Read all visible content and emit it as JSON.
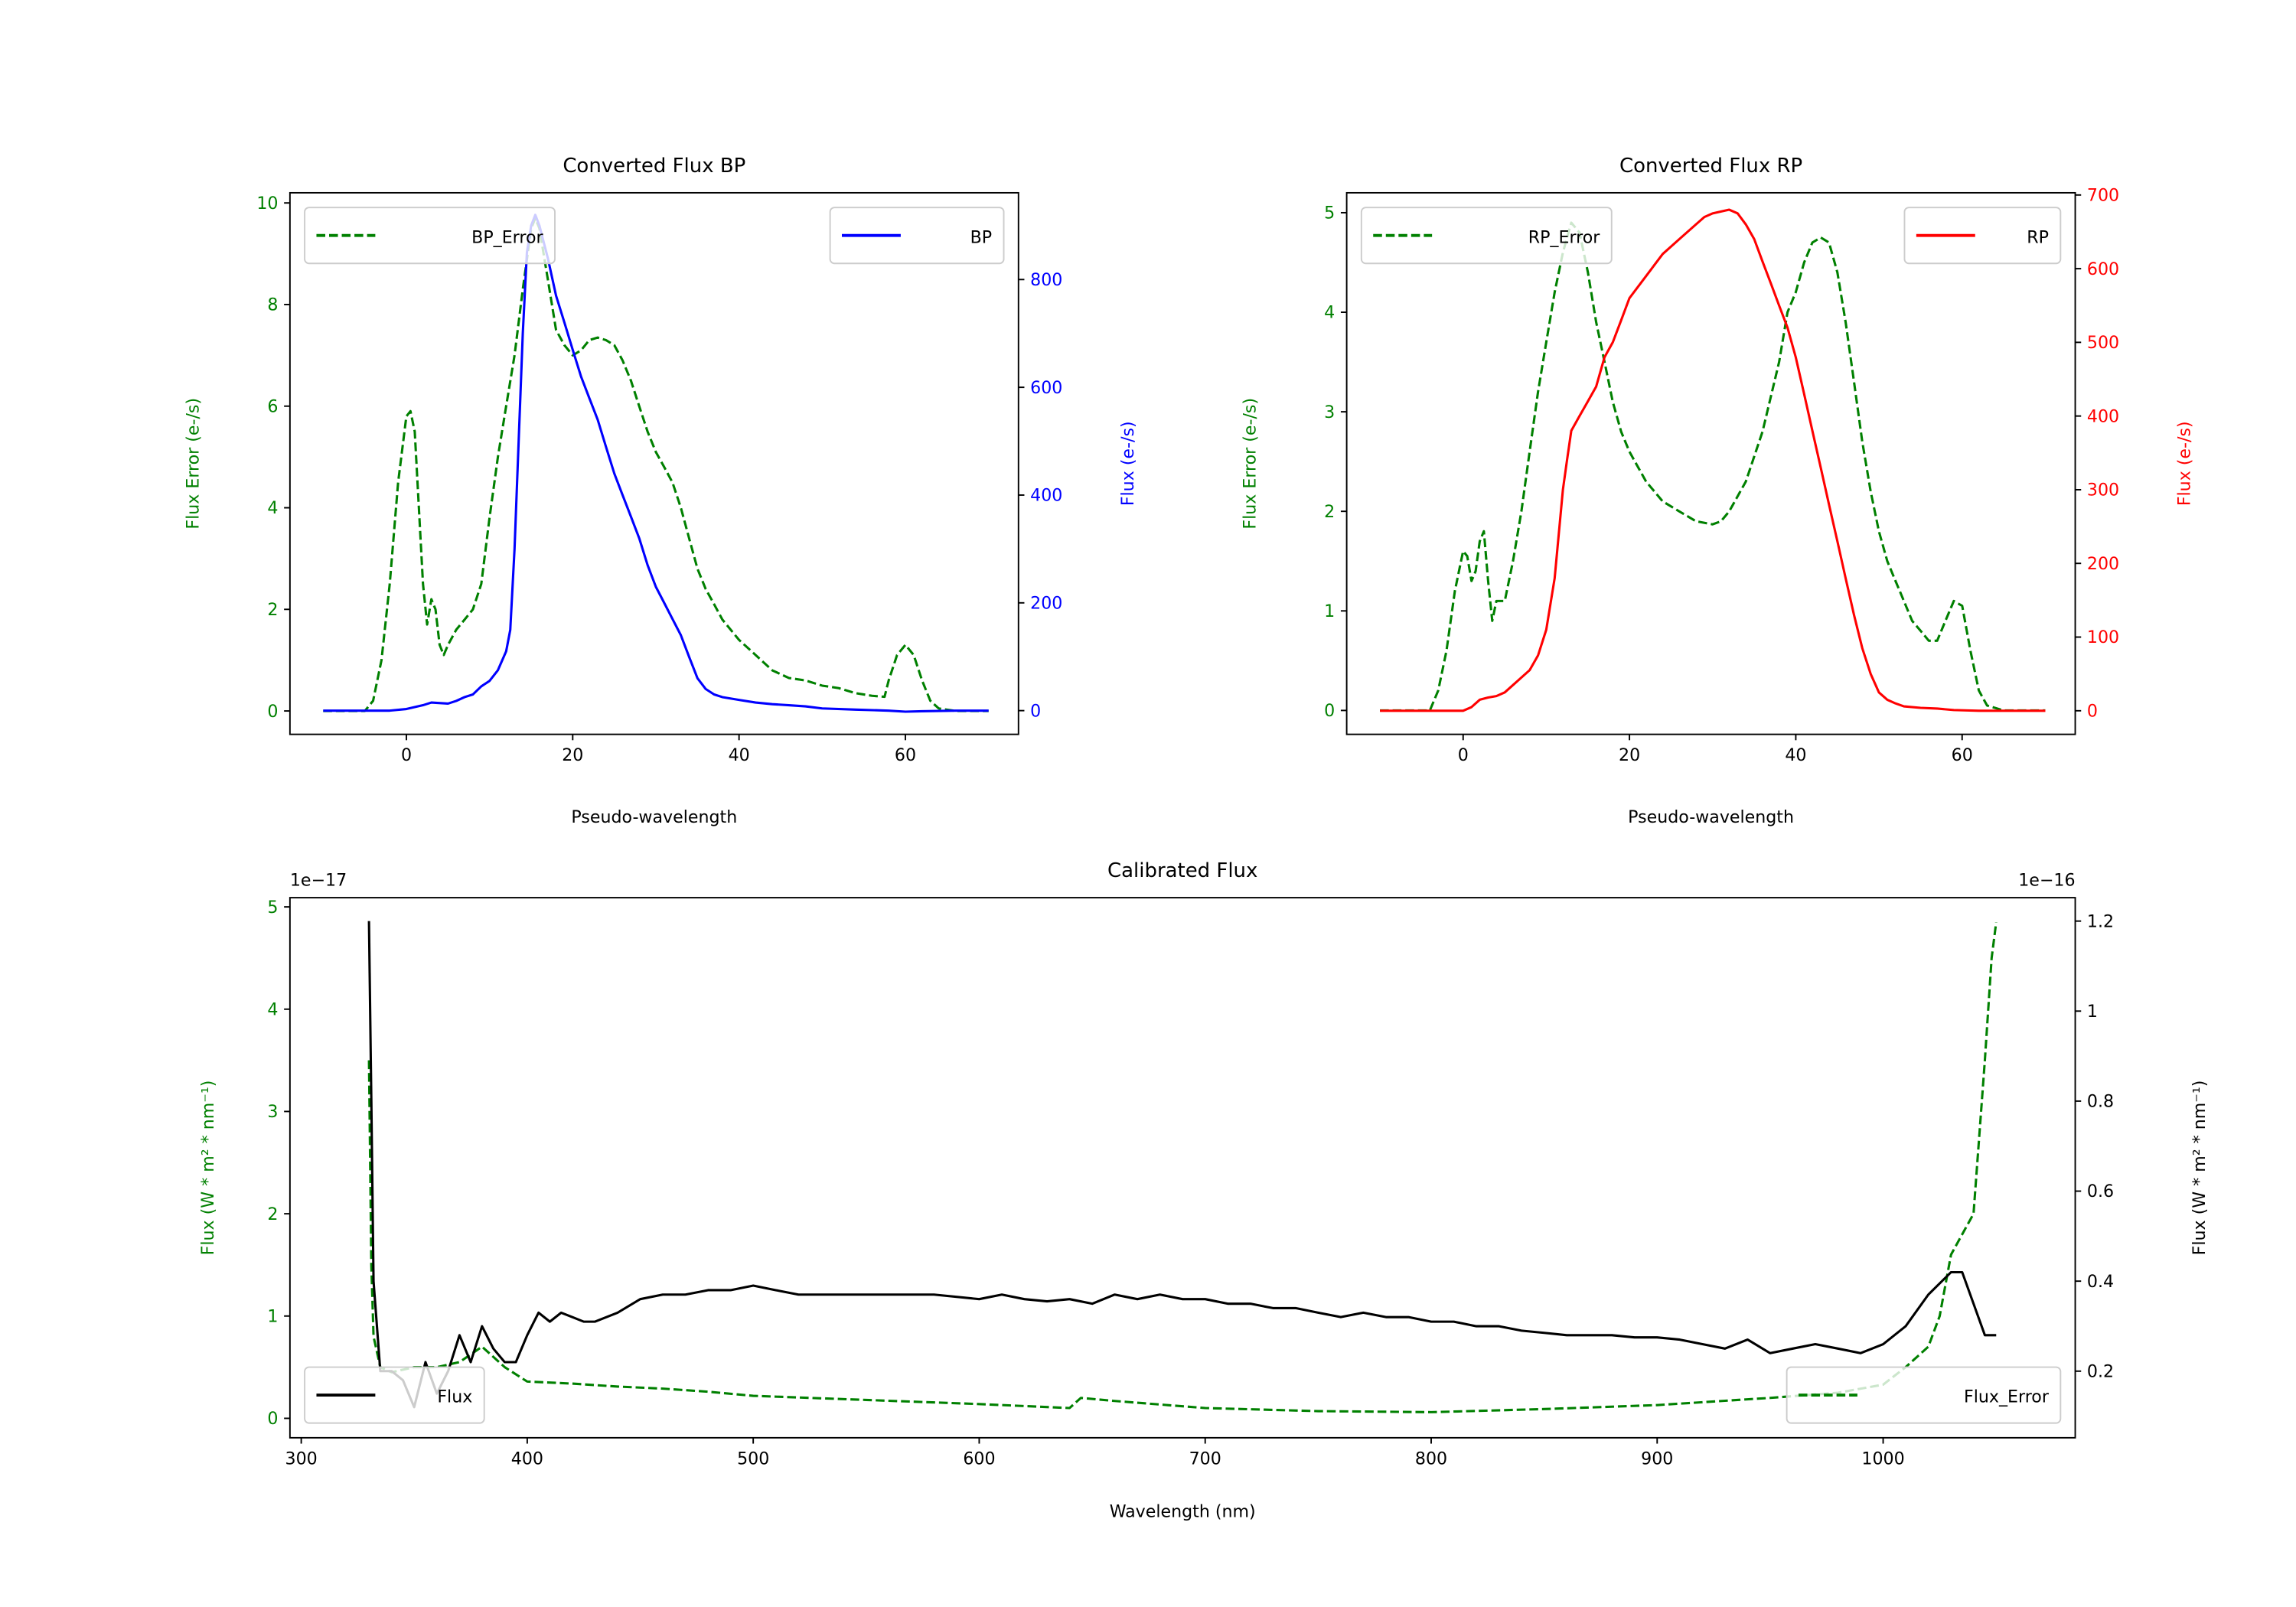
{
  "colors": {
    "error": "#008000",
    "bp": "#0000ff",
    "rp": "#ff0000",
    "flux": "#000000",
    "legend_border": "#cccccc"
  },
  "chart_data": [
    {
      "type": "line",
      "title": "Converted Flux BP",
      "xlabel": "Pseudo-wavelength",
      "ylabel_left": "Flux Error (e-/s)",
      "ylabel_right": "Flux (e-/s)",
      "xlim": [
        -14,
        73.6
      ],
      "ylim_left": [
        -0.46,
        10.2
      ],
      "ylim_right": [
        -44,
        961
      ],
      "xticks": [
        0,
        20,
        40,
        60
      ],
      "yticks_left": [
        0,
        2,
        4,
        6,
        8,
        10
      ],
      "yticks_right": [
        0,
        200,
        400,
        600,
        800
      ],
      "legend_left": {
        "label": "BP_Error",
        "placement": "upper-left"
      },
      "legend_right": {
        "label": "BP",
        "placement": "upper-right"
      },
      "series": [
        {
          "name": "BP_Error",
          "axis": "left",
          "style": "dashed",
          "color": "#008000",
          "x": [
            -10,
            -5,
            -4,
            -3,
            -2,
            -1,
            0,
            0.5,
            1,
            1.5,
            2,
            2.5,
            3,
            3.5,
            4,
            4.5,
            5,
            6,
            7,
            8,
            9,
            10,
            11,
            12,
            13,
            14,
            15,
            15.5,
            16,
            17,
            18,
            19,
            20,
            21,
            22,
            23,
            24,
            25,
            26,
            27,
            28,
            29,
            30,
            31,
            32,
            33,
            34,
            35,
            36,
            37,
            38,
            40,
            42,
            44,
            46,
            48,
            50,
            52,
            54,
            56,
            57.5,
            58,
            59,
            60,
            61,
            62,
            63,
            64,
            66,
            70
          ],
          "y": [
            0,
            0,
            0.2,
            1,
            2.5,
            4.5,
            5.8,
            5.9,
            5.5,
            4,
            2.5,
            1.7,
            2.2,
            2,
            1.3,
            1.1,
            1.3,
            1.6,
            1.8,
            2,
            2.5,
            3.8,
            5,
            6,
            7,
            8.3,
            9.5,
            9.7,
            9.5,
            8.5,
            7.5,
            7.2,
            7,
            7.1,
            7.3,
            7.35,
            7.3,
            7.2,
            6.9,
            6.5,
            6,
            5.5,
            5.1,
            4.8,
            4.5,
            4,
            3.4,
            2.8,
            2.4,
            2.1,
            1.8,
            1.4,
            1.1,
            0.8,
            0.65,
            0.6,
            0.5,
            0.45,
            0.35,
            0.3,
            0.28,
            0.6,
            1.1,
            1.3,
            1.1,
            0.6,
            0.2,
            0.05,
            0,
            0
          ]
        },
        {
          "name": "BP",
          "axis": "right",
          "style": "solid",
          "color": "#0000ff",
          "x": [
            -10,
            -2,
            0,
            2,
            3,
            5,
            6,
            7,
            8,
            9,
            10,
            11,
            12,
            12.5,
            13,
            13.5,
            14,
            14.5,
            15,
            15.5,
            16,
            17,
            18,
            19,
            20,
            21,
            22,
            23,
            24,
            25,
            26,
            27,
            28,
            29,
            30,
            31,
            32,
            33,
            34,
            35,
            36,
            37,
            38,
            40,
            42,
            44,
            46,
            48,
            50,
            54,
            58,
            60,
            62,
            66,
            70
          ],
          "y": [
            0,
            0,
            3,
            10,
            15,
            13,
            18,
            25,
            30,
            45,
            55,
            75,
            110,
            150,
            300,
            500,
            700,
            850,
            900,
            920,
            900,
            840,
            770,
            720,
            670,
            620,
            580,
            540,
            490,
            440,
            400,
            360,
            320,
            270,
            230,
            200,
            170,
            140,
            100,
            60,
            40,
            30,
            25,
            20,
            15,
            12,
            10,
            8,
            4,
            2,
            0,
            -2,
            -1,
            0,
            0
          ]
        }
      ]
    },
    {
      "type": "line",
      "title": "Converted Flux RP",
      "xlabel": "Pseudo-wavelength",
      "ylabel_left": "Flux Error (e-/s)",
      "ylabel_right": "Flux (e-/s)",
      "xlim": [
        -14,
        73.6
      ],
      "ylim_left": [
        -0.24,
        5.2
      ],
      "ylim_right": [
        -32,
        703
      ],
      "xticks": [
        0,
        20,
        40,
        60
      ],
      "yticks_left": [
        0,
        1,
        2,
        3,
        4,
        5
      ],
      "yticks_right": [
        0,
        100,
        200,
        300,
        400,
        500,
        600,
        700
      ],
      "legend_left": {
        "label": "RP_Error",
        "placement": "upper-left"
      },
      "legend_right": {
        "label": "RP",
        "placement": "upper-right"
      },
      "series": [
        {
          "name": "RP_Error",
          "axis": "left",
          "style": "dashed",
          "color": "#008000",
          "x": [
            -10,
            -4,
            -3,
            -2,
            -1,
            0,
            0.5,
            1,
            1.5,
            2,
            2.5,
            3,
            3.5,
            4,
            5,
            6,
            7,
            8,
            9,
            10,
            11,
            12,
            13,
            14,
            15,
            16,
            17,
            18,
            19,
            20,
            22,
            24,
            26,
            28,
            30,
            31,
            32,
            34,
            36,
            38,
            39,
            40,
            41,
            42,
            43,
            44,
            45,
            46,
            47,
            48,
            49,
            50,
            51,
            52,
            53,
            54,
            55,
            56,
            57,
            58,
            59,
            60,
            61,
            62,
            63,
            65,
            70
          ],
          "y": [
            0,
            0,
            0.2,
            0.6,
            1.2,
            1.6,
            1.55,
            1.3,
            1.4,
            1.7,
            1.8,
            1.3,
            0.9,
            1.1,
            1.1,
            1.5,
            2,
            2.6,
            3.2,
            3.7,
            4.2,
            4.6,
            4.9,
            4.8,
            4.4,
            3.9,
            3.5,
            3.1,
            2.8,
            2.6,
            2.3,
            2.1,
            2,
            1.9,
            1.87,
            1.9,
            2,
            2.3,
            2.8,
            3.5,
            4,
            4.2,
            4.5,
            4.7,
            4.75,
            4.7,
            4.4,
            3.9,
            3.3,
            2.7,
            2.2,
            1.8,
            1.5,
            1.3,
            1.1,
            0.9,
            0.8,
            0.7,
            0.7,
            0.9,
            1.1,
            1.05,
            0.6,
            0.2,
            0.05,
            0,
            0
          ]
        },
        {
          "name": "RP",
          "axis": "right",
          "style": "solid",
          "color": "#ff0000",
          "x": [
            -10,
            0,
            1,
            2,
            3,
            4,
            5,
            6,
            7,
            8,
            9,
            10,
            11,
            12,
            12.5,
            13,
            14,
            15,
            16,
            17,
            18,
            19,
            20,
            22,
            24,
            26,
            28,
            29,
            30,
            32,
            33,
            34,
            35,
            36,
            37,
            38,
            39,
            40,
            41,
            42,
            43,
            44,
            45,
            46,
            47,
            48,
            49,
            50,
            51,
            52,
            53,
            55,
            57,
            59,
            62,
            70
          ],
          "y": [
            0,
            0,
            5,
            15,
            18,
            20,
            25,
            35,
            45,
            55,
            75,
            110,
            180,
            300,
            340,
            380,
            400,
            420,
            440,
            480,
            500,
            530,
            560,
            590,
            620,
            640,
            660,
            670,
            675,
            680,
            675,
            660,
            640,
            610,
            580,
            550,
            520,
            480,
            430,
            380,
            330,
            280,
            230,
            180,
            130,
            85,
            50,
            25,
            15,
            10,
            6,
            4,
            3,
            1,
            0,
            0
          ]
        }
      ]
    },
    {
      "type": "line",
      "title": "Calibrated Flux",
      "xlabel": "Wavelength (nm)",
      "ylabel_left": "Flux (W * m² * nm⁻¹)",
      "ylabel_right": "Flux (W * m² * nm⁻¹)",
      "offset_left": "1e−17",
      "offset_right": "1e−16",
      "xlim": [
        295,
        1085
      ],
      "ylim_left": [
        -0.19,
        5.09
      ],
      "ylim_right": [
        0.052,
        1.252
      ],
      "xticks": [
        300,
        400,
        500,
        600,
        700,
        800,
        900,
        1000
      ],
      "yticks_left": [
        0,
        1,
        2,
        3,
        4,
        5
      ],
      "yticks_right": [
        0.2,
        0.4,
        0.6,
        0.8,
        1.0,
        1.2
      ],
      "legend_left": {
        "label": "Flux",
        "placement": "lower-left"
      },
      "legend_right": {
        "label": "Flux_Error",
        "placement": "lower-right"
      },
      "series": [
        {
          "name": "Flux_Error",
          "axis": "left",
          "style": "dashed",
          "color": "#008000",
          "x": [
            330,
            331,
            332,
            335,
            340,
            350,
            360,
            370,
            380,
            390,
            400,
            420,
            440,
            460,
            480,
            500,
            550,
            600,
            640,
            645,
            660,
            700,
            750,
            800,
            850,
            900,
            950,
            980,
            1000,
            1010,
            1020,
            1025,
            1030,
            1040,
            1045,
            1048,
            1050
          ],
          "y": [
            3.5,
            1.5,
            0.8,
            0.5,
            0.45,
            0.5,
            0.5,
            0.55,
            0.7,
            0.5,
            0.36,
            0.34,
            0.31,
            0.29,
            0.26,
            0.22,
            0.18,
            0.14,
            0.1,
            0.2,
            0.17,
            0.1,
            0.07,
            0.06,
            0.09,
            0.13,
            0.2,
            0.25,
            0.33,
            0.5,
            0.7,
            1.0,
            1.6,
            2.0,
            3.5,
            4.5,
            4.85
          ]
        },
        {
          "name": "Flux",
          "axis": "right",
          "style": "solid",
          "color": "#000000",
          "x": [
            330,
            331,
            332,
            335,
            340,
            345,
            350,
            355,
            360,
            365,
            370,
            375,
            380,
            385,
            390,
            395,
            400,
            405,
            410,
            415,
            420,
            425,
            430,
            440,
            450,
            460,
            470,
            480,
            490,
            500,
            510,
            520,
            540,
            560,
            580,
            600,
            610,
            620,
            630,
            640,
            650,
            660,
            670,
            680,
            690,
            700,
            710,
            720,
            730,
            740,
            750,
            760,
            770,
            780,
            790,
            800,
            810,
            820,
            830,
            840,
            850,
            860,
            870,
            880,
            890,
            900,
            910,
            920,
            930,
            940,
            950,
            960,
            970,
            980,
            990,
            1000,
            1010,
            1020,
            1030,
            1035,
            1040,
            1045,
            1050
          ],
          "y": [
            1.2,
            0.8,
            0.4,
            0.2,
            0.2,
            0.18,
            0.12,
            0.22,
            0.15,
            0.2,
            0.28,
            0.22,
            0.3,
            0.25,
            0.22,
            0.22,
            0.28,
            0.33,
            0.31,
            0.33,
            0.32,
            0.31,
            0.31,
            0.33,
            0.36,
            0.37,
            0.37,
            0.38,
            0.38,
            0.39,
            0.38,
            0.37,
            0.37,
            0.37,
            0.37,
            0.36,
            0.37,
            0.36,
            0.355,
            0.36,
            0.35,
            0.37,
            0.36,
            0.37,
            0.36,
            0.36,
            0.35,
            0.35,
            0.34,
            0.34,
            0.33,
            0.32,
            0.33,
            0.32,
            0.32,
            0.31,
            0.31,
            0.3,
            0.3,
            0.29,
            0.285,
            0.28,
            0.28,
            0.28,
            0.275,
            0.275,
            0.27,
            0.26,
            0.25,
            0.27,
            0.24,
            0.25,
            0.26,
            0.25,
            0.24,
            0.26,
            0.3,
            0.37,
            0.42,
            0.42,
            0.35,
            0.28,
            0.28
          ]
        }
      ]
    }
  ]
}
